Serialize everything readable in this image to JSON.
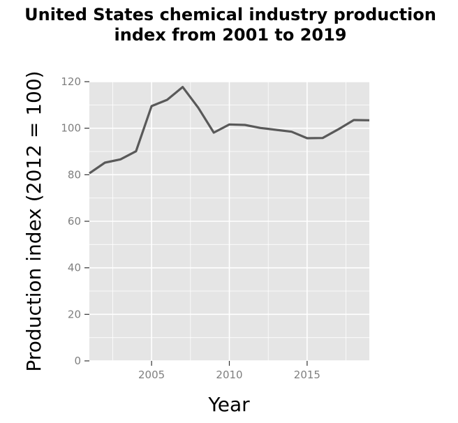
{
  "chart_data": {
    "type": "line",
    "title": "United States chemical industry production index from 2001 to 2019",
    "title_lines": [
      "United States chemical industry production",
      "index from 2001 to 2019"
    ],
    "xlabel": "Year",
    "ylabel": "Production index (2012 = 100)",
    "xlim": [
      2001,
      2019
    ],
    "ylim": [
      0,
      120
    ],
    "x_ticks": [
      2005,
      2010,
      2015
    ],
    "y_ticks": [
      0,
      20,
      40,
      60,
      80,
      100,
      120
    ],
    "grid": true,
    "legend": "none",
    "series": [
      {
        "x": [
          2001,
          2002,
          2003,
          2004,
          2005,
          2006,
          2007,
          2008,
          2009,
          2010,
          2011,
          2012,
          2013,
          2014,
          2015,
          2016,
          2017,
          2018,
          2019
        ],
        "y": [
          80.6,
          85.2,
          86.6,
          90.1,
          109.5,
          112.2,
          117.7,
          108.8,
          98.1,
          101.6,
          101.4,
          100.1,
          99.3,
          98.5,
          95.7,
          95.8,
          99.5,
          103.5,
          103.4
        ]
      }
    ],
    "colors": {
      "panel": "#e5e5e5",
      "grid": "#ffffff",
      "line": "#595959",
      "tick_text": "#7f7f7f"
    }
  }
}
